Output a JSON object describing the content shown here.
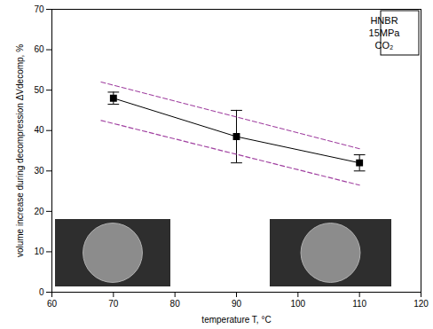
{
  "chart_data": {
    "type": "line",
    "xlabel": "temperature T, °C",
    "ylabel": "volume increase during decompression ΔVdecomp, %",
    "xlim": [
      60,
      120
    ],
    "xticks": [
      60,
      70,
      80,
      90,
      100,
      110,
      120
    ],
    "ylim": [
      0,
      70
    ],
    "yticks": [
      0,
      10,
      20,
      30,
      40,
      50,
      60,
      70
    ],
    "annotations": [
      "HNBR",
      "15MPa",
      "CO₂"
    ],
    "series": [
      {
        "x": [
          70,
          90,
          110
        ],
        "values": [
          48,
          38.5,
          32
        ],
        "error": [
          1.5,
          6.5,
          2
        ],
        "color": "#000000",
        "marker": "square",
        "line_style": "solid"
      },
      {
        "x": [
          68,
          110
        ],
        "values": [
          52,
          35.5
        ],
        "color": "#a040a0",
        "marker": "none",
        "line_style": "dashed"
      },
      {
        "x": [
          68,
          110
        ],
        "values": [
          42.5,
          26.5
        ],
        "color": "#a040a0",
        "marker": "none",
        "line_style": "dashed"
      }
    ]
  }
}
